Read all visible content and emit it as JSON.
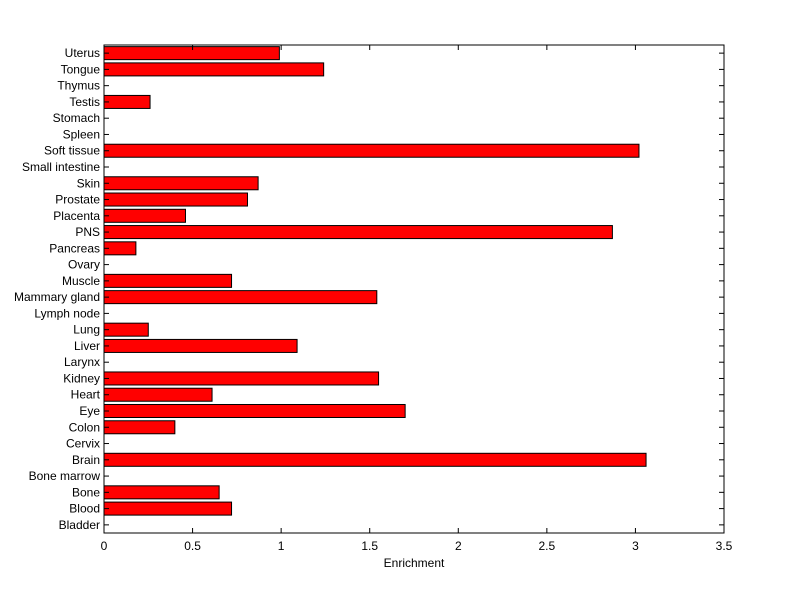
{
  "chart_data": {
    "type": "bar",
    "orientation": "horizontal",
    "title": "",
    "xlabel": "Enrichment",
    "ylabel": "",
    "xlim": [
      0,
      3.5
    ],
    "xticks": [
      0,
      0.5,
      1,
      1.5,
      2,
      2.5,
      3,
      3.5
    ],
    "xtick_labels": [
      "0",
      "0.5",
      "1",
      "1.5",
      "2",
      "2.5",
      "3",
      "3.5"
    ],
    "grid": false,
    "bar_color": "#ff0000",
    "bar_edge_color": "#000000",
    "categories": [
      "Bladder",
      "Blood",
      "Bone",
      "Bone marrow",
      "Brain",
      "Cervix",
      "Colon",
      "Eye",
      "Heart",
      "Kidney",
      "Larynx",
      "Liver",
      "Lung",
      "Lymph node",
      "Mammary gland",
      "Muscle",
      "Ovary",
      "Pancreas",
      "PNS",
      "Placenta",
      "Prostate",
      "Skin",
      "Small intestine",
      "Soft tissue",
      "Spleen",
      "Stomach",
      "Testis",
      "Thymus",
      "Tongue",
      "Uterus"
    ],
    "values": [
      0,
      0.72,
      0.65,
      0,
      3.06,
      0,
      0.4,
      1.7,
      0.61,
      1.55,
      0,
      1.09,
      0.25,
      0,
      1.54,
      0.72,
      0,
      0.18,
      2.87,
      0.46,
      0.81,
      0.87,
      0,
      3.02,
      0,
      0,
      0.26,
      0,
      1.24,
      0.99
    ]
  }
}
